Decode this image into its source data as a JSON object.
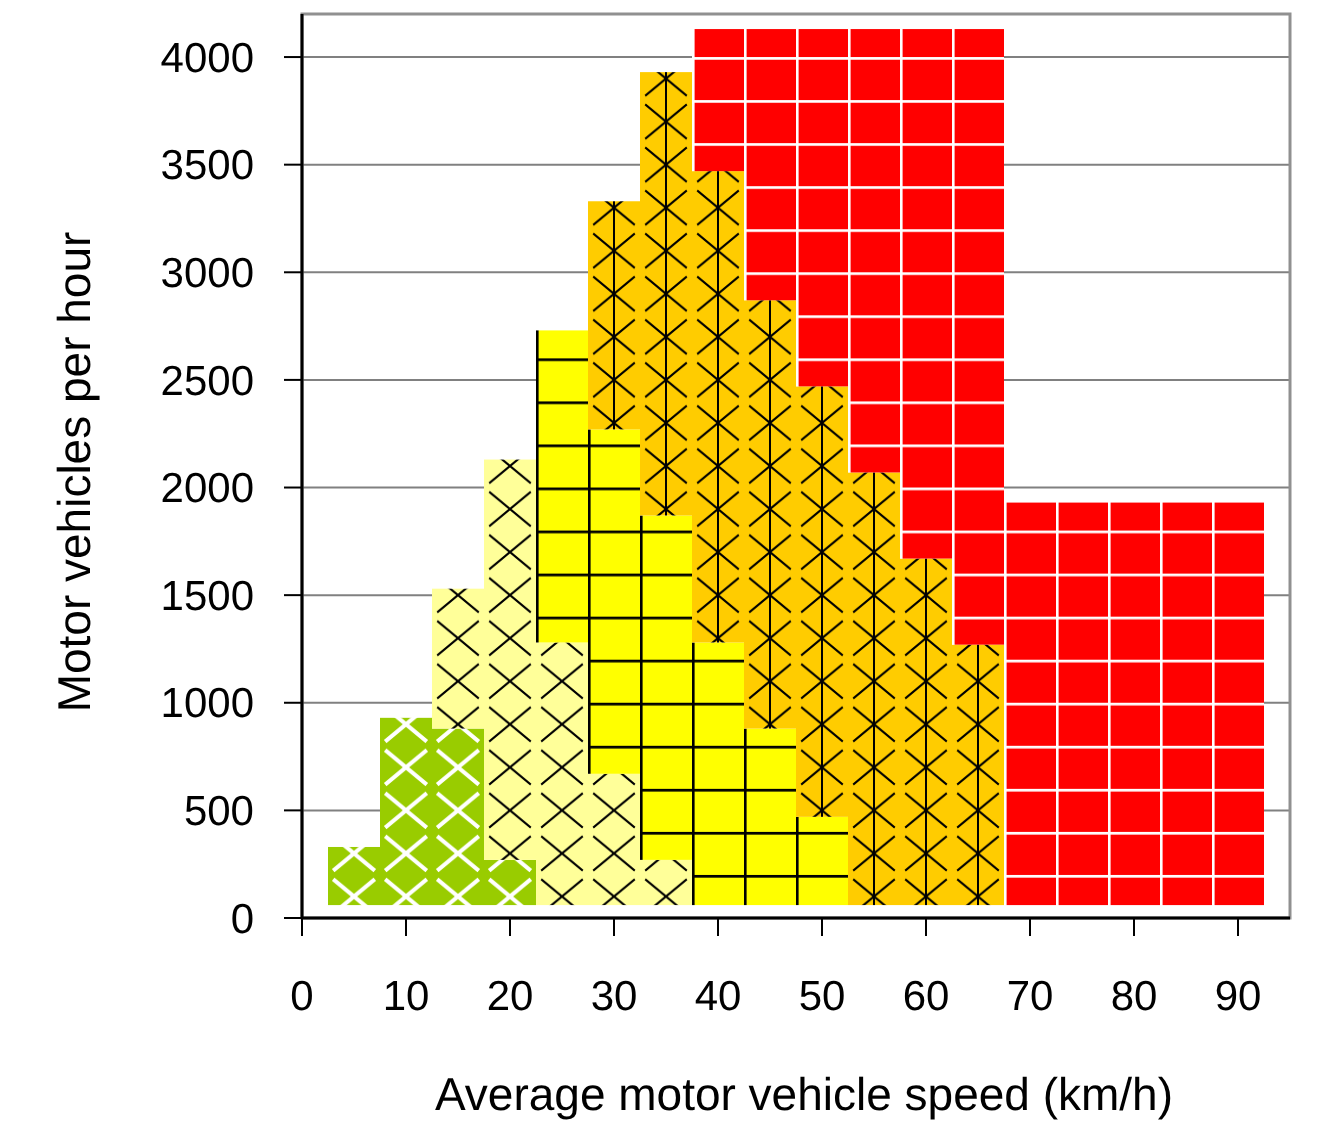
{
  "chart_data": {
    "type": "bar",
    "xlabel": "Average motor vehicle speed (km/h)",
    "ylabel": "Motor vehicles per hour",
    "x": [
      5,
      10,
      15,
      20,
      25,
      30,
      35,
      40,
      45,
      50,
      55,
      60,
      65,
      70,
      75,
      80,
      85,
      90
    ],
    "series": [
      {
        "color": "#99cc00",
        "base": [
          60,
          60,
          60,
          60,
          null,
          null,
          null,
          null,
          null,
          null,
          null,
          null,
          null,
          null,
          null,
          null,
          null,
          null
        ],
        "values": [
          270,
          870,
          820,
          210,
          null,
          null,
          null,
          null,
          null,
          null,
          null,
          null,
          null,
          null,
          null,
          null,
          null,
          null
        ]
      },
      {
        "color": "#ffff99",
        "base": [
          null,
          null,
          880,
          270,
          60,
          60,
          60,
          null,
          null,
          null,
          null,
          null,
          null,
          null,
          null,
          null,
          null,
          null
        ],
        "values": [
          null,
          null,
          650,
          1860,
          1220,
          610,
          210,
          null,
          null,
          null,
          null,
          null,
          null,
          null,
          null,
          null,
          null,
          null
        ]
      },
      {
        "color": "#ffff00",
        "base": [
          null,
          null,
          null,
          null,
          1280,
          670,
          270,
          60,
          60,
          60,
          null,
          null,
          null,
          null,
          null,
          null,
          null,
          null
        ],
        "values": [
          null,
          null,
          null,
          null,
          1450,
          1600,
          1600,
          1220,
          820,
          410,
          null,
          null,
          null,
          null,
          null,
          null,
          null,
          null
        ]
      },
      {
        "color": "#ffcc00",
        "base": [
          null,
          null,
          null,
          null,
          null,
          2270,
          1870,
          1280,
          880,
          470,
          60,
          60,
          60,
          null,
          null,
          null,
          null,
          null
        ],
        "values": [
          null,
          null,
          null,
          null,
          null,
          1060,
          2060,
          2190,
          1990,
          2000,
          2010,
          1610,
          1210,
          null,
          null,
          null,
          null,
          null
        ]
      },
      {
        "color": "#ff0000",
        "base": [
          null,
          null,
          null,
          null,
          null,
          null,
          null,
          3470,
          2870,
          2470,
          2070,
          1670,
          1270,
          60,
          60,
          60,
          60,
          60
        ],
        "values": [
          null,
          null,
          null,
          null,
          null,
          null,
          null,
          660,
          1260,
          1660,
          2060,
          2460,
          2860,
          1870,
          1870,
          1870,
          1870,
          1870
        ]
      }
    ],
    "xlim": [
      0,
      95
    ],
    "xticks": [
      0,
      10,
      20,
      30,
      40,
      50,
      60,
      70,
      80,
      90
    ],
    "ylim": [
      0,
      4200
    ],
    "yticks": [
      0,
      500,
      1000,
      1500,
      2000,
      2500,
      3000,
      3500,
      4000
    ],
    "grid": "y"
  }
}
